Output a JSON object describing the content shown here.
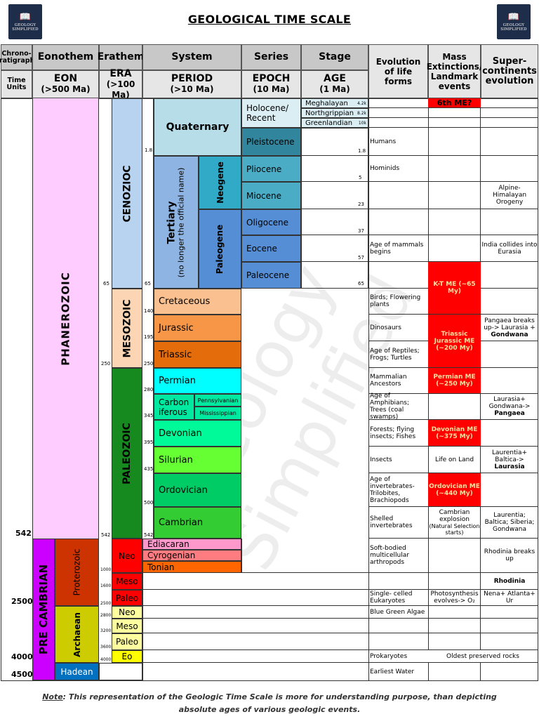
{
  "title": "GEOLOGICAL TIME SCALE",
  "logo": {
    "text": "GEOLOGY SIMPLIFIED",
    "icon": "book-icon"
  },
  "headers": {
    "chrono": "Chrono-stratigraphic",
    "eonothem": "Eonothem",
    "erathem": "Erathem",
    "system": "System",
    "series": "Series",
    "stage": "Stage",
    "time_units": "Time Units",
    "eon": "EON",
    "eon_sub": "(>500 Ma)",
    "era": "ERA",
    "era_sub": "(>100 Ma)",
    "period": "PERIOD",
    "period_sub": "(>10 Ma)",
    "epoch": "EPOCH",
    "epoch_sub": "(10 Ma)",
    "age": "AGE",
    "age_sub": "(1 Ma)",
    "evolution": "Evolution of life forms",
    "mass": "Mass Extinctions/ Landmark events",
    "super": "Super-continents evolution"
  },
  "eons": {
    "phanerozoic": "PHANEROZOIC",
    "precambrian": "PRE CAMBRIAN",
    "proterozoic": "Proterozoic",
    "archaean": "Archaean",
    "hadean": "Hadean"
  },
  "eras": {
    "cenozoic": "CENOZIOC",
    "mesozoic": "MESOZOIC",
    "paleozoic": "PALEOZOIC"
  },
  "periods": {
    "quaternary": "Quaternary",
    "tertiary": "Tertiary",
    "tertiary_note": "(no longer the official name)",
    "neogene": "Neogene",
    "paleogene": "Paleogene",
    "cretaceous": "Cretaceous",
    "jurassic": "Jurassic",
    "triassic": "Triassic",
    "permian": "Permian",
    "carboniferous": "Carbon iferous",
    "pennsylvanian": "Pennsylvanian",
    "mississippian": "Mississippian",
    "devonian": "Devonian",
    "silurian": "Silurian",
    "ordovician": "Ordovician",
    "cambrian": "Cambrian",
    "ediacaran": "Ediacaran",
    "cyrogenian": "Cyrogenian",
    "tonian": "Tonian"
  },
  "epochs": {
    "holocene": "Holocene/ Recent",
    "pleistocene": "Pleistocene",
    "pliocene": "Pliocene",
    "miocene": "Miocene",
    "oligocene": "Oligocene",
    "eocene": "Eocene",
    "paleocene": "Paleocene"
  },
  "ages": [
    {
      "name": "Meghalayan",
      "val": "4.2k"
    },
    {
      "name": "Northgrippian",
      "val": "8.2k"
    },
    {
      "name": "Greenlandian",
      "val": "10k"
    }
  ],
  "precambrian_eras": {
    "neo": "Neo",
    "meso": "Meso",
    "paleo": "Paleo",
    "eo": "Eo"
  },
  "numbers": {
    "n1_8a": "1.8",
    "n1_8b": "1.8",
    "n5": "5",
    "n23": "23",
    "n37": "37",
    "n57": "57",
    "n65a": "65",
    "n65b": "65",
    "n65c": "65",
    "n140": "140",
    "n195": "195",
    "n250a": "250",
    "n250b": "250",
    "n280": "280",
    "n345": "345",
    "n395": "395",
    "n435": "435",
    "n500": "500",
    "n542a": "542",
    "n542b": "542",
    "n542big": "542",
    "n1000": "1000",
    "n1600": "1600",
    "n2500a": "2500",
    "n2800": "2800",
    "n3200": "3200",
    "n3600": "3600",
    "n4000a": "4000",
    "n2500big": "2500",
    "n4000big": "4000",
    "n4500big": "4500"
  },
  "evolution": {
    "humans": "Humans",
    "hominids": "Hominids",
    "mammals": "Age of mammals begins",
    "birds": "Birds; Flowering plants",
    "dinosaurs": "Dinosaurs",
    "reptiles": "Age of Reptiles; Frogs; Turtles",
    "mammalian": "Mammalian Ancestors",
    "amphibians": "Age of Amphibians; Trees (coal swamps)",
    "forests": "Forests; flying insects; Fishes",
    "insects": "Insects",
    "invertebrates": "Age of invertebrates- Trilobites, Brachiopods",
    "shelled": "Shelled invertebrates",
    "softbodied": "Soft-bodied multicellular arthropods",
    "eukaryotes": "Single- celled Eukaryotes",
    "bluegreen": "Blue Green Algae",
    "prokaryotes": "Prokaryotes",
    "water": "Earliest Water"
  },
  "mass": {
    "sixth": "6th ME?",
    "kt": "K-T ME (~65 My)",
    "triassic": "Triassic Jurassic ME (~200 My)",
    "permian": "Permian ME (~250 My)",
    "devonian": "Devonian ME (~375 My)",
    "life_land": "Life on Land",
    "ordovician": "Ordovician ME (~440 My)",
    "cambrian_exp": "Cambrian explosion",
    "natsel": "(Natural Selection starts)",
    "photo": "Photosynthesis evolves-> O₂",
    "oldest": "Oldest preserved rocks"
  },
  "super": {
    "alpine": "Alpine- Himalayan Orogeny",
    "india": "India collides into Eurasia",
    "pangaea_breaks": "Pangaea breaks up-> Laurasia + ",
    "pangaea_breaks_b": "Gondwana",
    "lg": "Laurasia+ Gondwana-> ",
    "lg_b": "Pangaea",
    "lb": "Laurentia+ Baltica-> ",
    "lb_b": "Laurasia",
    "laurentia": "Laurentia; Baltica; Siberia; Gondwana",
    "rhodinia_breaks": "Rhodinia breaks up",
    "rhodinia": "Rhodinia",
    "nena": "Nena+ Atlanta+ Ur"
  },
  "note_label": "Note",
  "note": ": This representation of the Geologic Time Scale is more for understanding purpose, than depicting absolute ages of various geologic events.",
  "watermark": "Geology Simplified",
  "colors": {
    "phanerozoic": "#ffccff",
    "cenozoic": "#b8d3ef",
    "mesozoic": "#fcd5b4",
    "paleozoic": "#168a1e",
    "quaternary": "#b7dde8",
    "tertiary": "#8db4e2",
    "neogene": "#31aac8",
    "paleogene": "#558ed5",
    "cretaceous": "#fac090",
    "jurassic": "#f79646",
    "triassic": "#e46c0a",
    "permian": "#00ffff",
    "carboniferous": "#00e9a0",
    "devonian": "#00fa9a",
    "silurian": "#66ff33",
    "ordovician": "#00cc66",
    "cambrian": "#33cc33",
    "extinction": "#ff0000",
    "precambrian": "#cc00ff",
    "proterozoic": "#cc3300",
    "archaean": "#cccc00",
    "hadean": "#0070c0"
  }
}
